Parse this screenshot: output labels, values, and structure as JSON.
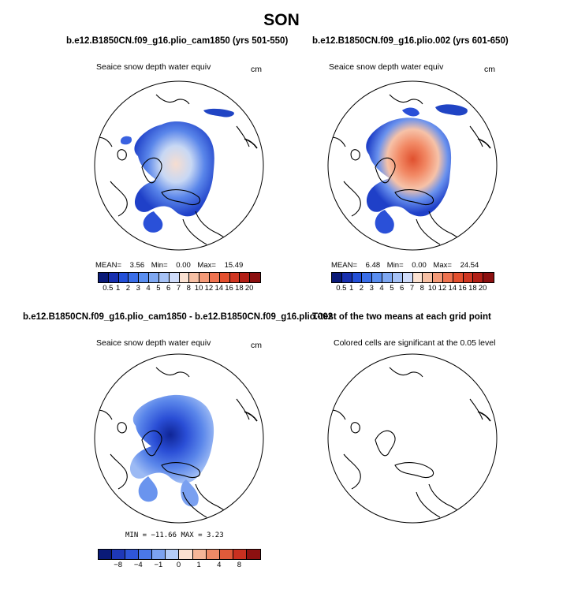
{
  "page": {
    "title": "SON"
  },
  "panels": [
    {
      "id": "p1",
      "case_title": "b.e12.B1850CN.f09_g16.plio_cam1850 (yrs 501-550)",
      "var_title": "Seaice snow depth water equiv",
      "units": "cm",
      "stats": {
        "mean_label": "MEAN=",
        "mean": "3.56",
        "min_label": "Min=",
        "min": "0.00",
        "max_label": "Max=",
        "max": "15.49"
      },
      "colorbar": {
        "colors": [
          "#0a1a78",
          "#1830b0",
          "#2450d8",
          "#3a6ee8",
          "#5a8ef0",
          "#7fa8f2",
          "#a6c2f6",
          "#cfdcfa",
          "#fbe2d2",
          "#f7c0a4",
          "#f49a78",
          "#ef7350",
          "#e4502f",
          "#d03722",
          "#b21f16",
          "#8c1010"
        ],
        "labels": [
          "0.5",
          "1",
          "2",
          "3",
          "4",
          "5",
          "6",
          "7",
          "8",
          "10",
          "12",
          "14",
          "16",
          "18",
          "20"
        ]
      }
    },
    {
      "id": "p2",
      "case_title": "b.e12.B1850CN.f09_g16.plio.002 (yrs 601-650)",
      "var_title": "Seaice snow depth water equiv",
      "units": "cm",
      "stats": {
        "mean_label": "MEAN=",
        "mean": "6.48",
        "min_label": "Min=",
        "min": "0.00",
        "max_label": "Max=",
        "max": "24.54"
      },
      "colorbar": {
        "colors": [
          "#0a1a78",
          "#1830b0",
          "#2450d8",
          "#3a6ee8",
          "#5a8ef0",
          "#7fa8f2",
          "#a6c2f6",
          "#cfdcfa",
          "#fbe2d2",
          "#f7c0a4",
          "#f49a78",
          "#ef7350",
          "#e4502f",
          "#d03722",
          "#b21f16",
          "#8c1010"
        ],
        "labels": [
          "0.5",
          "1",
          "2",
          "3",
          "4",
          "5",
          "6",
          "7",
          "8",
          "10",
          "12",
          "14",
          "16",
          "18",
          "20"
        ]
      }
    },
    {
      "id": "p3",
      "case_title": "b.e12.B1850CN.f09_g16.plio_cam1850 - b.e12.B1850CN.f09_g16.plio.002",
      "var_title": "Seaice snow depth water equiv",
      "units": "cm",
      "stats_line": "MIN = −11.66  MAX =    3.23",
      "colorbar": {
        "colors": [
          "#0a1a78",
          "#1e38b8",
          "#2f56d8",
          "#4a78e8",
          "#7ca2f0",
          "#b4ccf8",
          "#fbe0d0",
          "#f5b698",
          "#ee8a66",
          "#e05a3a",
          "#c83020",
          "#8c1010"
        ],
        "labels": [
          "−8",
          "−4",
          "−1",
          "0",
          "1",
          "4",
          "8"
        ]
      }
    },
    {
      "id": "p4",
      "case_title": "T-test of the two means at each grid point",
      "var_title": "Colored cells are significant at the 0.05 level"
    }
  ]
}
